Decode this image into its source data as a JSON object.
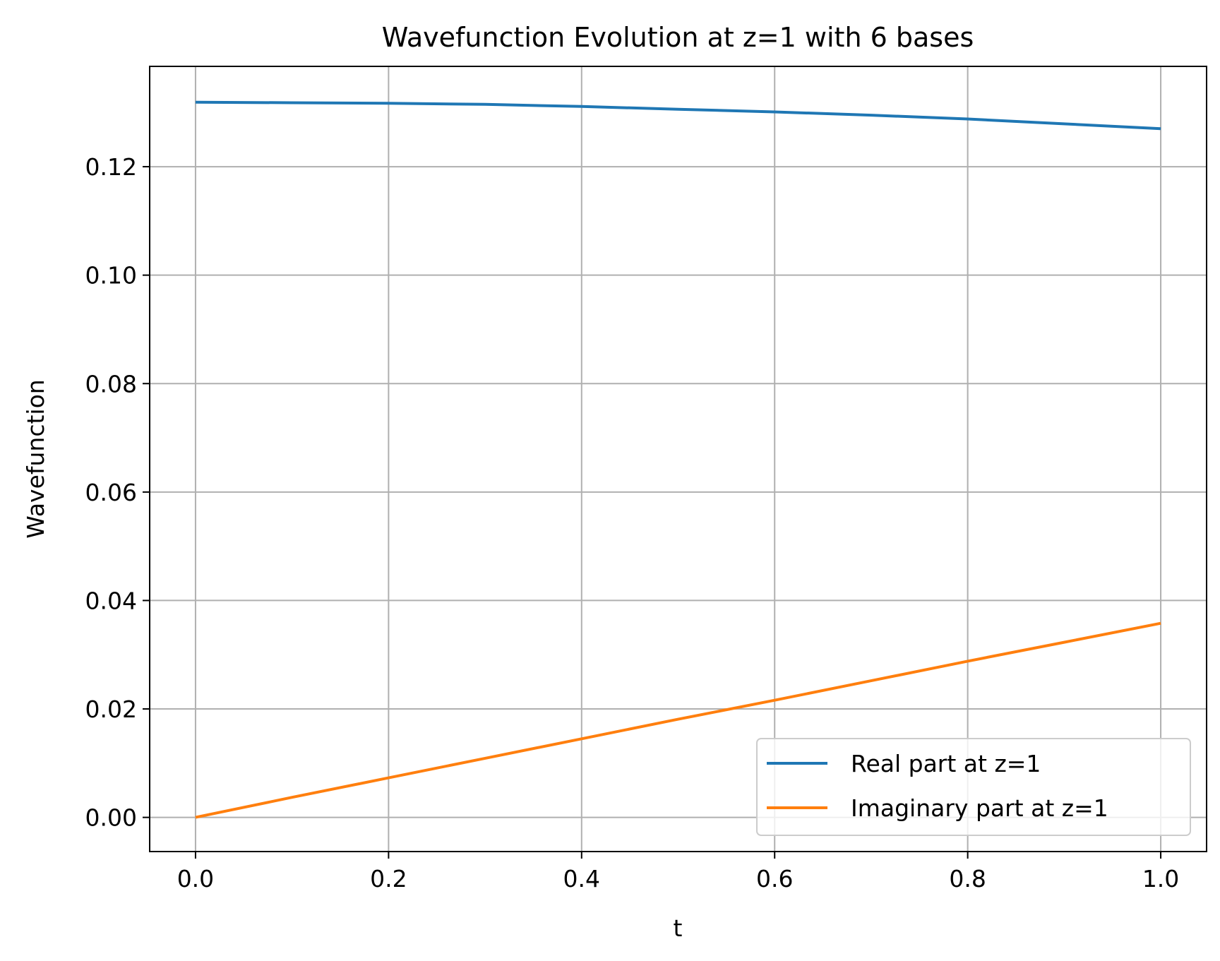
{
  "chart_data": {
    "type": "line",
    "title": "Wavefunction Evolution at z=1 with 6 bases",
    "xlabel": "t",
    "ylabel": "Wavefunction",
    "xlim": [
      -0.0475,
      1.0475
    ],
    "ylim": [
      -0.0063,
      0.1385
    ],
    "xticks": [
      0.0,
      0.2,
      0.4,
      0.6,
      0.8,
      1.0
    ],
    "xtick_labels": [
      "0.0",
      "0.2",
      "0.4",
      "0.6",
      "0.8",
      "1.0"
    ],
    "yticks": [
      0.0,
      0.02,
      0.04,
      0.06,
      0.08,
      0.1,
      0.12
    ],
    "ytick_labels": [
      "0.00",
      "0.02",
      "0.04",
      "0.06",
      "0.08",
      "0.10",
      "0.12"
    ],
    "grid": true,
    "legend_position": "lower-right",
    "x": [
      0.0,
      0.1,
      0.2,
      0.3,
      0.4,
      0.5,
      0.6,
      0.7,
      0.8,
      0.9,
      1.0
    ],
    "series": [
      {
        "name": "Real part at z=1",
        "color": "#1f77b4",
        "values": [
          0.1319,
          0.1318,
          0.1317,
          0.1315,
          0.1311,
          0.1306,
          0.1301,
          0.1295,
          0.1288,
          0.1279,
          0.127
        ]
      },
      {
        "name": "Imaginary part at z=1",
        "color": "#ff7f0e",
        "values": [
          0.0,
          0.0037,
          0.0073,
          0.0109,
          0.0145,
          0.0181,
          0.0216,
          0.0252,
          0.0288,
          0.0323,
          0.0358
        ]
      }
    ]
  }
}
